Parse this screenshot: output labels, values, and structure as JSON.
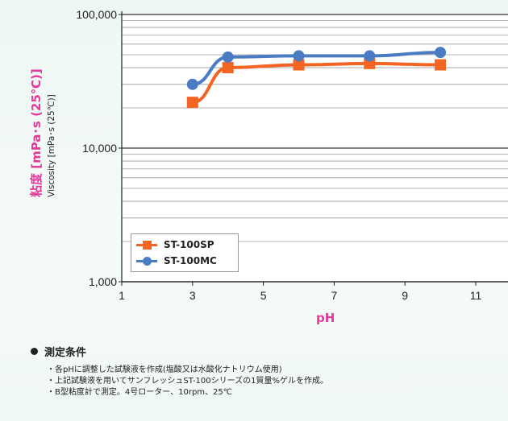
{
  "colors": {
    "sp": "#f26522",
    "mc": "#4a7cc4",
    "axis_label": "#e6399b"
  },
  "labels": {
    "ylabel_jp": "粘度 [mPa･s (25℃)]",
    "ylabel_en": "Viscosity [mPa･s (25℃)]",
    "xlabel": "pH"
  },
  "legend": [
    {
      "name": "ST-100SP",
      "marker": "square"
    },
    {
      "name": "ST-100MC",
      "marker": "circle"
    }
  ],
  "chart_data": {
    "type": "line",
    "title": "",
    "xlabel": "pH",
    "ylabel": "粘度 [mPa･s (25℃)]",
    "ylabel_secondary": "Viscosity [mPa･s (25℃)]",
    "yscale": "log",
    "xlim": [
      1,
      11
    ],
    "ylim": [
      1000,
      100000
    ],
    "xticks": [
      1,
      3,
      5,
      7,
      9,
      11
    ],
    "yticks": [
      1000,
      10000,
      100000
    ],
    "ytick_labels": [
      "1,000",
      "10,000",
      "100,000"
    ],
    "grid": "horizontal",
    "legend_position": "bottom-left",
    "series": [
      {
        "name": "ST-100SP",
        "marker": "square",
        "x": [
          3,
          4,
          6,
          8,
          10
        ],
        "y": [
          22000,
          40000,
          42000,
          43000,
          42000
        ]
      },
      {
        "name": "ST-100MC",
        "marker": "circle",
        "x": [
          3,
          4,
          6,
          8,
          10
        ],
        "y": [
          30000,
          48000,
          49000,
          49000,
          52000
        ]
      }
    ]
  },
  "notes": {
    "title": "測定条件",
    "items": [
      "・各pHに調整した試験液を作成(塩酸又は水酸化ナトリウム使用)",
      "・上記試験液を用いてサンフレッシュST-100シリーズの1質量%ゲルを作成。",
      "・B型粘度計で測定。4号ローター、10rpm、25℃"
    ]
  }
}
